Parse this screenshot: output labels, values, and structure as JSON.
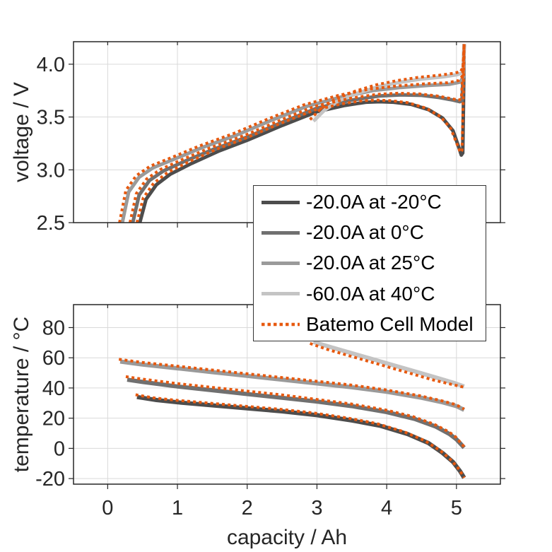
{
  "figure": {
    "background": "#ffffff",
    "text_color": "#262626",
    "grid_color": "#d9d9d9",
    "axis_color": "#262626",
    "model_accent_color": "#e7590f"
  },
  "axis_labels": {
    "top_y": "voltage / V",
    "bottom_y": "temperature / °C",
    "x": "capacity / Ah"
  },
  "legend": {
    "position": "center-right-between-plots",
    "entries": [
      {
        "label": "-20.0A at -20°C",
        "color": "#4d4d4d",
        "style": "solid"
      },
      {
        "label": "-20.0A at 0°C",
        "color": "#707070",
        "style": "solid"
      },
      {
        "label": "-20.0A at 25°C",
        "color": "#9a9a9a",
        "style": "solid"
      },
      {
        "label": "-60.0A at 40°C",
        "color": "#c4c4c4",
        "style": "solid"
      },
      {
        "label": "Batemo Cell Model",
        "color": "#e7590f",
        "style": "dotted"
      }
    ]
  },
  "chart_data": [
    {
      "type": "line",
      "title": "",
      "xlabel": "capacity / Ah",
      "ylabel": "voltage / V",
      "xlim": [
        -0.49,
        5.63
      ],
      "ylim": [
        2.5,
        4.213
      ],
      "xticks": [
        0,
        1,
        2,
        3,
        4,
        5
      ],
      "xtick_labels": [],
      "yticks": [
        2.5,
        3.0,
        3.5,
        4.0
      ],
      "ytick_labels": [
        "2.5",
        "3.0",
        "3.5",
        "4.0"
      ],
      "grid": true,
      "series": [
        {
          "name": "-20.0A at -20°C",
          "color": "#4d4d4d",
          "style": "solid",
          "width": 5,
          "x": [
            0.46,
            0.55,
            0.7,
            0.9,
            1.2,
            1.6,
            2.0,
            2.5,
            3.0,
            3.4,
            3.7,
            3.9,
            4.1,
            4.35,
            4.6,
            4.8,
            4.95,
            5.03,
            5.07,
            5.09,
            5.1,
            5.11
          ],
          "y": [
            2.5,
            2.72,
            2.86,
            2.96,
            3.06,
            3.18,
            3.28,
            3.42,
            3.55,
            3.61,
            3.64,
            3.645,
            3.64,
            3.62,
            3.57,
            3.49,
            3.37,
            3.22,
            3.14,
            3.16,
            3.6,
            4.19
          ]
        },
        {
          "name": "-20.0A at 0°C",
          "color": "#707070",
          "style": "solid",
          "width": 5,
          "x": [
            0.36,
            0.45,
            0.6,
            0.8,
            1.1,
            1.5,
            2.0,
            2.5,
            3.0,
            3.5,
            3.9,
            4.2,
            4.5,
            4.75,
            4.95,
            5.05,
            5.08,
            5.095,
            5.11
          ],
          "y": [
            2.5,
            2.76,
            2.9,
            2.99,
            3.08,
            3.19,
            3.31,
            3.45,
            3.585,
            3.66,
            3.7,
            3.71,
            3.705,
            3.685,
            3.66,
            3.645,
            3.655,
            3.9,
            4.19
          ]
        },
        {
          "name": "-20.0A at 25°C",
          "color": "#9a9a9a",
          "style": "solid",
          "width": 5,
          "x": [
            0.21,
            0.3,
            0.45,
            0.65,
            0.95,
            1.35,
            1.85,
            2.35,
            2.85,
            3.35,
            3.8,
            4.2,
            4.6,
            4.9,
            5.05,
            5.1,
            5.11
          ],
          "y": [
            2.5,
            2.79,
            2.93,
            3.02,
            3.1,
            3.21,
            3.33,
            3.47,
            3.6,
            3.69,
            3.75,
            3.78,
            3.8,
            3.81,
            3.83,
            3.88,
            4.19
          ]
        },
        {
          "name": "-60.0A at 40°C",
          "color": "#c4c4c4",
          "style": "solid",
          "width": 5,
          "x": [
            2.95,
            3.1,
            3.3,
            3.6,
            3.9,
            4.2,
            4.5,
            4.8,
            5.0,
            5.08,
            5.1,
            5.11
          ],
          "y": [
            3.46,
            3.56,
            3.65,
            3.73,
            3.79,
            3.83,
            3.86,
            3.88,
            3.9,
            3.915,
            3.96,
            4.19
          ]
        },
        {
          "name": "Batemo Cell Model (-20°C)",
          "color": "#e7590f",
          "style": "dotted",
          "width": 4,
          "x": [
            0.42,
            0.51,
            0.66,
            0.86,
            1.16,
            1.56,
            1.96,
            2.46,
            2.96,
            3.36,
            3.66,
            3.86,
            4.06,
            4.31,
            4.56,
            4.77,
            4.92,
            5.01,
            5.055,
            5.08,
            5.095,
            5.11
          ],
          "y": [
            2.5,
            2.735,
            2.875,
            2.975,
            3.075,
            3.195,
            3.295,
            3.435,
            3.565,
            3.625,
            3.655,
            3.66,
            3.655,
            3.635,
            3.585,
            3.505,
            3.39,
            3.24,
            3.165,
            3.185,
            3.62,
            4.19
          ]
        },
        {
          "name": "Batemo Cell Model (0°C)",
          "color": "#e7590f",
          "style": "dotted",
          "width": 4,
          "x": [
            0.32,
            0.41,
            0.56,
            0.76,
            1.06,
            1.46,
            1.96,
            2.46,
            2.96,
            3.46,
            3.86,
            4.16,
            4.46,
            4.72,
            4.92,
            5.03,
            5.07,
            5.09,
            5.11
          ],
          "y": [
            2.5,
            2.775,
            2.915,
            3.005,
            3.095,
            3.205,
            3.325,
            3.465,
            3.6,
            3.675,
            3.715,
            3.725,
            3.72,
            3.7,
            3.675,
            3.66,
            3.67,
            3.92,
            4.19
          ]
        },
        {
          "name": "Batemo Cell Model (25°C)",
          "color": "#e7590f",
          "style": "dotted",
          "width": 4,
          "x": [
            0.17,
            0.26,
            0.41,
            0.61,
            0.91,
            1.31,
            1.81,
            2.31,
            2.81,
            3.31,
            3.76,
            4.16,
            4.56,
            4.87,
            5.03,
            5.095,
            5.11
          ],
          "y": [
            2.5,
            2.805,
            2.945,
            3.035,
            3.115,
            3.225,
            3.345,
            3.485,
            3.615,
            3.705,
            3.765,
            3.795,
            3.815,
            3.825,
            3.845,
            3.895,
            4.19
          ]
        },
        {
          "name": "Batemo Cell Model (40°C)",
          "color": "#e7590f",
          "style": "dotted",
          "width": 4,
          "x": [
            2.9,
            3.05,
            3.25,
            3.55,
            3.85,
            4.15,
            4.45,
            4.75,
            4.97,
            5.06,
            5.095,
            5.11
          ],
          "y": [
            3.475,
            3.575,
            3.665,
            3.745,
            3.805,
            3.845,
            3.875,
            3.895,
            3.915,
            3.93,
            3.975,
            4.19
          ]
        }
      ]
    },
    {
      "type": "line",
      "title": "",
      "xlabel": "capacity / Ah",
      "ylabel": "temperature / °C",
      "xlim": [
        -0.49,
        5.63
      ],
      "ylim": [
        -23.7,
        95.2
      ],
      "xticks": [
        0,
        1,
        2,
        3,
        4,
        5
      ],
      "xtick_labels": [
        "0",
        "1",
        "2",
        "3",
        "4",
        "5"
      ],
      "yticks": [
        -20,
        0,
        20,
        40,
        60,
        80
      ],
      "ytick_labels": [
        "-20",
        "0",
        "20",
        "40",
        "60",
        "80"
      ],
      "grid": true,
      "series": [
        {
          "name": "-20.0A at -20°C",
          "color": "#4d4d4d",
          "style": "solid",
          "width": 6,
          "x": [
            0.42,
            0.7,
            1.0,
            1.5,
            2.0,
            2.5,
            3.0,
            3.5,
            3.9,
            4.3,
            4.6,
            4.8,
            4.95,
            5.05,
            5.11
          ],
          "y": [
            34,
            32,
            30.5,
            28.5,
            26.5,
            24.5,
            22,
            18.5,
            15,
            9.5,
            3.5,
            -3,
            -9,
            -15,
            -19.5
          ]
        },
        {
          "name": "-20.0A at 0°C",
          "color": "#707070",
          "style": "solid",
          "width": 6,
          "x": [
            0.28,
            0.5,
            1.0,
            1.5,
            2.0,
            2.5,
            3.0,
            3.5,
            4.0,
            4.4,
            4.7,
            4.9,
            5.0,
            5.11
          ],
          "y": [
            45.5,
            44,
            41,
            38.5,
            36,
            33.5,
            31,
            28,
            24,
            19.5,
            14.5,
            9.5,
            6,
            0.5
          ]
        },
        {
          "name": "-20.0A at 25°C",
          "color": "#9a9a9a",
          "style": "solid",
          "width": 6,
          "x": [
            0.18,
            0.5,
            1.0,
            1.5,
            2.0,
            2.5,
            3.0,
            3.5,
            4.0,
            4.5,
            4.8,
            5.0,
            5.11
          ],
          "y": [
            57.5,
            55.5,
            53,
            50.5,
            48,
            45.5,
            43,
            40.5,
            37.5,
            33.5,
            30.5,
            28,
            25.5
          ]
        },
        {
          "name": "-60.0A at 40°C",
          "color": "#c4c4c4",
          "style": "solid",
          "width": 6,
          "x": [
            2.95,
            3.2,
            3.5,
            3.8,
            4.1,
            4.4,
            4.7,
            4.95,
            5.11
          ],
          "y": [
            70.5,
            67,
            63,
            59,
            55,
            51,
            47,
            43.5,
            41
          ]
        },
        {
          "name": "Batemo Cell Model (-20°C)",
          "color": "#e7590f",
          "style": "dotted",
          "width": 4,
          "x": [
            0.4,
            0.65,
            0.95,
            1.45,
            1.95,
            2.45,
            2.95,
            3.45,
            3.85,
            4.25,
            4.55,
            4.77,
            4.93,
            5.04,
            5.11
          ],
          "y": [
            35.5,
            33.5,
            32,
            30,
            28,
            26,
            23.5,
            20,
            16.5,
            11,
            5,
            -1.5,
            -8,
            -14,
            -19.5
          ]
        },
        {
          "name": "Batemo Cell Model (0°C)",
          "color": "#e7590f",
          "style": "dotted",
          "width": 4,
          "x": [
            0.26,
            0.48,
            0.98,
            1.48,
            1.98,
            2.48,
            2.98,
            3.48,
            3.98,
            4.38,
            4.68,
            4.89,
            4.99,
            5.11
          ],
          "y": [
            47.5,
            46,
            43,
            40.5,
            38,
            35.5,
            32.5,
            29.5,
            25.5,
            21,
            16,
            11,
            7.5,
            1
          ]
        },
        {
          "name": "Batemo Cell Model (25°C)",
          "color": "#e7590f",
          "style": "dotted",
          "width": 4,
          "x": [
            0.16,
            0.48,
            0.98,
            1.48,
            1.98,
            2.48,
            2.98,
            3.48,
            3.98,
            4.48,
            4.79,
            4.99,
            5.11
          ],
          "y": [
            59,
            57,
            54.5,
            52,
            49.5,
            47,
            44.5,
            42,
            38.8,
            34.8,
            31.5,
            29,
            26
          ]
        },
        {
          "name": "Batemo Cell Model (40°C)",
          "color": "#e7590f",
          "style": "dotted",
          "width": 4,
          "x": [
            2.9,
            3.15,
            3.45,
            3.75,
            4.05,
            4.35,
            4.65,
            4.92,
            5.11
          ],
          "y": [
            69.5,
            65.5,
            61.5,
            57.5,
            53.5,
            49.5,
            45.5,
            42.5,
            40.5
          ]
        }
      ]
    }
  ]
}
